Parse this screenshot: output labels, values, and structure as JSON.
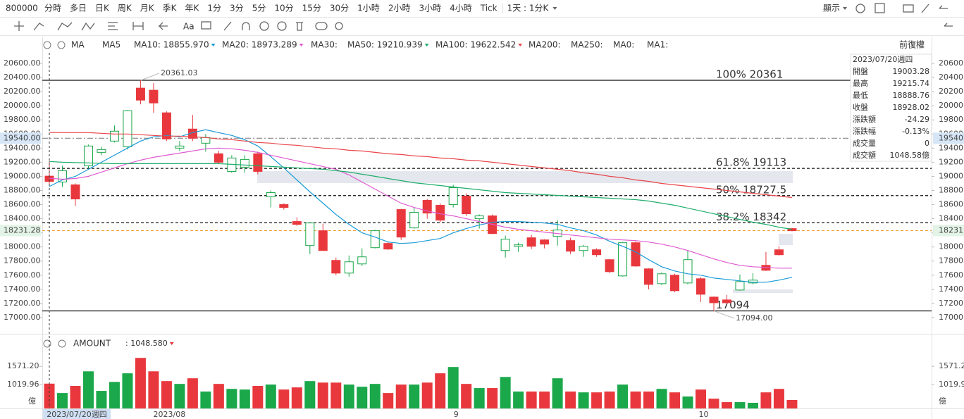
{
  "toolbar": {
    "symbol": "800000",
    "periods": [
      "分時",
      "多日",
      "日K",
      "周K",
      "月K",
      "季K",
      "年K",
      "1分",
      "3分",
      "5分",
      "10分",
      "15分",
      "30分",
      "1小時",
      "2小時",
      "3小時",
      "4小時",
      "Tick"
    ],
    "interval": "1天 : 1分K",
    "display": "顯示",
    "text_tool": "Aa"
  },
  "chart_data": {
    "type": "candlestick",
    "indicator": "MA",
    "adjust": "前復權",
    "categories": [
      null,
      null,
      null,
      null,
      null,
      null,
      null,
      null,
      null,
      "2023/08",
      null,
      null,
      null,
      null,
      null,
      null,
      null,
      null,
      null,
      null,
      null,
      null,
      null,
      null,
      null,
      null,
      null,
      null,
      null,
      null,
      null,
      "9",
      null,
      null,
      null,
      null,
      null,
      null,
      null,
      null,
      null,
      null,
      null,
      null,
      null,
      null,
      null,
      null,
      null,
      null,
      "10",
      null,
      null,
      null,
      null,
      null,
      null,
      null
    ],
    "crosshair_label": "2023/07/20週四",
    "open": [
      19003.28,
      18920,
      18880,
      19150,
      19340,
      19500,
      19420,
      20250,
      20220,
      19900,
      19400,
      19670,
      19470,
      19320,
      19070,
      19130,
      19320,
      18710,
      18600,
      18360,
      18020,
      18230,
      17810,
      17630,
      17760,
      17990,
      18050,
      18530,
      18270,
      18660,
      18590,
      18600,
      18720,
      18400,
      18440,
      17950,
      18010,
      18130,
      18100,
      18150,
      18090,
      17950,
      17960,
      17820,
      17590,
      18060,
      17690,
      17480,
      17600,
      17490,
      17550,
      17290,
      17250,
      17390,
      17490,
      17740,
      17960,
      18260
    ],
    "high": [
      19215.74,
      19150,
      18900,
      19450,
      19420,
      19720,
      19940,
      20361.03,
      20320,
      19920,
      19500,
      19870,
      19600,
      19360,
      19300,
      19300,
      19350,
      18800,
      18620,
      18420,
      18350,
      18330,
      17850,
      17880,
      17980,
      18240,
      18080,
      18540,
      18560,
      18680,
      18620,
      18880,
      18760,
      18460,
      18460,
      18160,
      18060,
      18170,
      18110,
      18380,
      18130,
      18030,
      17980,
      17830,
      18070,
      18080,
      17700,
      17640,
      17620,
      17950,
      17570,
      17300,
      17320,
      17610,
      17630,
      17930,
      18010,
      18270
    ],
    "low": [
      18888.76,
      18850,
      18580,
      19120,
      19300,
      19480,
      19380,
      20020,
      19900,
      19500,
      19360,
      19500,
      19350,
      19180,
      19050,
      19050,
      19030,
      18560,
      18530,
      18300,
      17900,
      17950,
      17600,
      17580,
      17730,
      17980,
      17960,
      18100,
      18260,
      18400,
      18350,
      18560,
      18440,
      18260,
      18180,
      17850,
      17930,
      17970,
      17980,
      18020,
      17900,
      17860,
      17860,
      17630,
      17580,
      17720,
      17400,
      17460,
      17360,
      17470,
      17220,
      17094,
      17190,
      17380,
      17470,
      17660,
      17880,
      18220
    ],
    "close": [
      18928.02,
      19080,
      18680,
      19430,
      19380,
      19640,
      19930,
      20080,
      20040,
      19530,
      19430,
      19540,
      19550,
      19200,
      19260,
      19240,
      19070,
      18770,
      18560,
      18320,
      18340,
      17950,
      17630,
      17790,
      17860,
      18230,
      17970,
      18140,
      18490,
      18480,
      18380,
      18840,
      18470,
      18440,
      18190,
      18110,
      18030,
      18010,
      18040,
      18240,
      17940,
      18010,
      17890,
      17650,
      18060,
      17730,
      17470,
      17620,
      17380,
      17820,
      17330,
      17210,
      17210,
      17510,
      17530,
      17670,
      17890,
      18231.28
    ],
    "up_color": "#1aa84a",
    "down_color": "#e8383d",
    "ylim": [
      16810,
      20750
    ],
    "yticks": [
      {
        "value": 17000,
        "label": "17000.00"
      },
      {
        "value": 17200,
        "label": "17200.00"
      },
      {
        "value": 17400,
        "label": "17400.00"
      },
      {
        "value": 17600,
        "label": "17600.00"
      },
      {
        "value": 17800,
        "label": "17800.00"
      },
      {
        "value": 18000,
        "label": "18000.00"
      },
      {
        "value": 18200,
        "label": "18200.00"
      },
      {
        "value": 18400,
        "label": "18400.00"
      },
      {
        "value": 18600,
        "label": "18600.00"
      },
      {
        "value": 18800,
        "label": "18800.00"
      },
      {
        "value": 19000,
        "label": "19000.00"
      },
      {
        "value": 19200,
        "label": "19200.00"
      },
      {
        "value": 19400,
        "label": "19400.00"
      },
      {
        "value": 19600,
        "label": "19600.00"
      },
      {
        "value": 19800,
        "label": "19800.00"
      },
      {
        "value": 20000,
        "label": "20000.00"
      },
      {
        "value": 20200,
        "label": "20200.00"
      },
      {
        "value": 20400,
        "label": "20400.00"
      },
      {
        "value": 20600,
        "label": "20600.00"
      }
    ],
    "series": [
      {
        "name": "MA10: 18855.970",
        "color": "#1a9bd7",
        "values": [
          18855.97,
          18950,
          19000,
          19100,
          19200,
          19300,
          19400,
          19500,
          19560,
          19580,
          19560,
          19620,
          19660,
          19620,
          19580,
          19520,
          19430,
          19280,
          19120,
          18950,
          18780,
          18620,
          18460,
          18320,
          18200,
          18140,
          18070,
          18050,
          18060,
          18090,
          18120,
          18200,
          18260,
          18310,
          18350,
          18360,
          18360,
          18350,
          18340,
          18320,
          18270,
          18230,
          18170,
          18080,
          18010,
          17930,
          17820,
          17720,
          17660,
          17620,
          17600,
          17560,
          17540,
          17520,
          17500,
          17500,
          17530,
          17570
        ]
      },
      {
        "name": "MA20: 18973.289",
        "color": "#e05ad0",
        "values": [
          18973.289,
          18960,
          18970,
          19000,
          19060,
          19120,
          19180,
          19230,
          19270,
          19300,
          19330,
          19360,
          19390,
          19400,
          19390,
          19370,
          19340,
          19300,
          19260,
          19220,
          19180,
          19140,
          19100,
          19020,
          18920,
          18820,
          18720,
          18620,
          18560,
          18510,
          18470,
          18440,
          18400,
          18360,
          18320,
          18280,
          18250,
          18230,
          18210,
          18190,
          18170,
          18150,
          18130,
          18110,
          18100,
          18090,
          18070,
          18040,
          18000,
          17950,
          17890,
          17830,
          17780,
          17740,
          17720,
          17710,
          17700,
          17700
        ]
      },
      {
        "name": "MA50: 19210.939",
        "color": "#1fae6b",
        "values": [
          19210.939,
          19200,
          19195,
          19190,
          19185,
          19180,
          19180,
          19180,
          19180,
          19180,
          19180,
          19180,
          19180,
          19180,
          19170,
          19160,
          19150,
          19140,
          19130,
          19120,
          19110,
          19100,
          19080,
          19060,
          19030,
          19000,
          18970,
          18940,
          18910,
          18890,
          18870,
          18850,
          18830,
          18810,
          18790,
          18770,
          18760,
          18750,
          18740,
          18730,
          18720,
          18710,
          18700,
          18690,
          18680,
          18670,
          18650,
          18620,
          18590,
          18550,
          18510,
          18470,
          18430,
          18390,
          18350,
          18320,
          18280,
          18250
        ]
      },
      {
        "name": "MA100: 19622.542",
        "color": "#e8464a",
        "values": [
          19622.542,
          19620,
          19620,
          19620,
          19610,
          19600,
          19600,
          19590,
          19580,
          19570,
          19570,
          19560,
          19550,
          19530,
          19520,
          19500,
          19480,
          19470,
          19450,
          19440,
          19420,
          19400,
          19390,
          19370,
          19360,
          19340,
          19320,
          19310,
          19290,
          19280,
          19260,
          19250,
          19230,
          19220,
          19200,
          19180,
          19160,
          19140,
          19120,
          19100,
          19080,
          19050,
          19030,
          19000,
          18980,
          18950,
          18930,
          18900,
          18880,
          18860,
          18840,
          18820,
          18800,
          18780,
          18760,
          18740,
          18720,
          18700
        ]
      }
    ],
    "inactive_ma": [
      "MA5",
      "MA30:",
      "MA200:",
      "MA250:",
      "MA0:",
      "MA1:"
    ],
    "fibonacci": [
      {
        "label": "100% 20361",
        "value": 20361
      },
      {
        "label": "61.8% 19113",
        "value": 19113
      },
      {
        "label": "50% 18727.5",
        "value": 18727.5
      },
      {
        "label": "38.2% 18342",
        "value": 18342
      },
      {
        "label": "17094",
        "value": 17094
      }
    ],
    "price_lines": [
      {
        "value": 19540,
        "label": "19540.00",
        "color": "#777777"
      },
      {
        "value": 18231.28,
        "label": "18231.28",
        "color": "#f0a030"
      }
    ],
    "high_label": {
      "value": 20361.03,
      "label": "20361.03"
    },
    "low_label": {
      "value": 17094,
      "label": "17094.00"
    },
    "info": {
      "date": "2023/07/20週四",
      "rows": [
        {
          "label": "開盤",
          "value": "19003.28",
          "color": "#1aa84a"
        },
        {
          "label": "最高",
          "value": "19215.74",
          "color": "#1aa84a"
        },
        {
          "label": "最低",
          "value": "18888.76",
          "color": "#e8383d"
        },
        {
          "label": "收盤",
          "value": "18928.02",
          "color": "#e8383d"
        },
        {
          "label": "漲跌額",
          "value": "-24.29",
          "color": "#e8383d"
        },
        {
          "label": "漲跌幅",
          "value": "-0.13%",
          "color": "#e8383d"
        },
        {
          "label": "成交量",
          "value": "0",
          "color": "#333333"
        },
        {
          "label": "成交額",
          "value": "1048.58億",
          "color": "#333333"
        }
      ]
    },
    "volume": {
      "name": "AMOUNT",
      "legend_label": ": 1048.580",
      "unit": "億",
      "values": [
        1048.58,
        765,
        980,
        1420,
        830,
        1100,
        1360,
        1825,
        1420,
        1125,
        1040,
        1210,
        810,
        1040,
        890,
        870,
        980,
        1020,
        870,
        935,
        1125,
        1080,
        1080,
        1020,
        955,
        1040,
        765,
        1020,
        1020,
        1080,
        1360,
        1550,
        1040,
        915,
        915,
        1250,
        810,
        810,
        810,
        1210,
        810,
        785,
        785,
        810,
        1020,
        810,
        810,
        890,
        785,
        660,
        870,
        595,
        490,
        490,
        470,
        785,
        890,
        555
      ],
      "ylim": [
        300,
        2000
      ],
      "yticks": [
        {
          "value": 1019.96,
          "label": "1019.96"
        },
        {
          "value": 1571.2,
          "label": "1571.20"
        }
      ]
    }
  }
}
